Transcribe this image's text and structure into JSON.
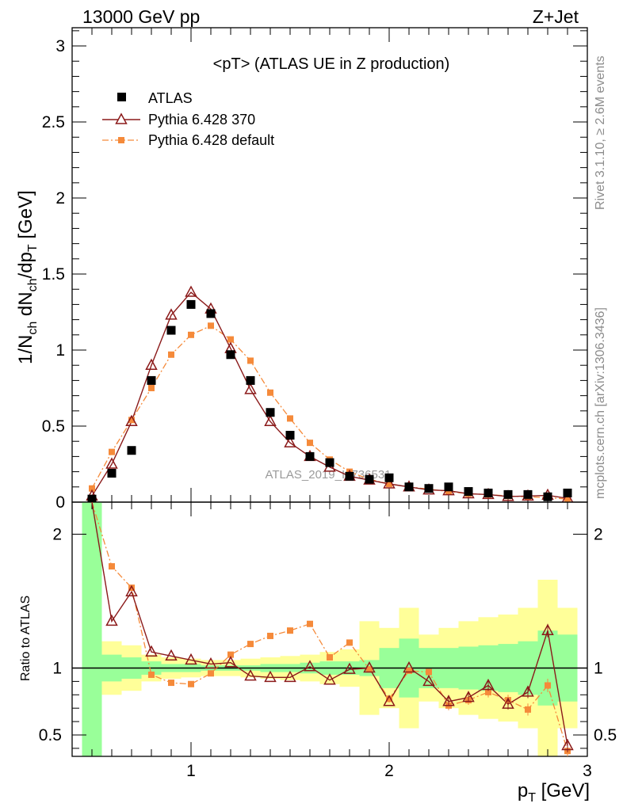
{
  "header": {
    "energy": "13000 GeV pp",
    "process": "Z+Jet"
  },
  "side": {
    "rivet": "Rivet 3.1.10, ≥ 2.6M events",
    "mcplots": "mcplots.cern.ch [arXiv:1306.3436]"
  },
  "chart_data": {
    "type": "scatter",
    "title": "<pT> (ATLAS UE in Z production)",
    "watermark": "ATLAS_2019_I1736531",
    "xlabel": "p_T [GeV]",
    "x_axis_label_main": "p",
    "x_axis_label_sub": "T",
    "x_axis_label_unit": " [GeV]",
    "ylabel_main": "1/N_ch dN_ch/dp_T [GeV]",
    "ylabel_ratio": "Ratio to ATLAS",
    "xlim": [
      0.4,
      3.0
    ],
    "ylim_main": [
      0,
      3.12
    ],
    "ylim_ratio": [
      0.34,
      2.24
    ],
    "x_ticks": [
      "1",
      "2",
      "3"
    ],
    "y_ticks_main": [
      "0",
      "0.5",
      "1",
      "1.5",
      "2",
      "2.5",
      "3"
    ],
    "y_ticks_ratio": [
      "0.5",
      "1",
      "2"
    ],
    "legend": [
      "ATLAS",
      "Pythia 6.428 370",
      "Pythia 6.428 default"
    ],
    "x": [
      0.5,
      0.6,
      0.7,
      0.8,
      0.9,
      1.0,
      1.1,
      1.2,
      1.3,
      1.4,
      1.5,
      1.6,
      1.7,
      1.8,
      1.9,
      2.0,
      2.1,
      2.2,
      2.3,
      2.4,
      2.5,
      2.6,
      2.7,
      2.8,
      2.9
    ],
    "series": [
      {
        "name": "ATLAS",
        "values": [
          0.02,
          0.19,
          0.34,
          0.8,
          1.13,
          1.3,
          1.24,
          0.97,
          0.8,
          0.59,
          0.44,
          0.3,
          0.26,
          0.17,
          0.15,
          0.16,
          0.1,
          0.09,
          0.1,
          0.07,
          0.06,
          0.05,
          0.05,
          0.035,
          0.06
        ]
      },
      {
        "name": "Pythia 6.428 370",
        "values": [
          0.04,
          0.25,
          0.53,
          0.9,
          1.23,
          1.38,
          1.27,
          1.01,
          0.74,
          0.53,
          0.39,
          0.3,
          0.23,
          0.17,
          0.145,
          0.12,
          0.1,
          0.08,
          0.075,
          0.055,
          0.05,
          0.037,
          0.04,
          0.045,
          0.025
        ]
      },
      {
        "name": "Pythia 6.428 default",
        "values": [
          0.09,
          0.33,
          0.54,
          0.75,
          0.97,
          1.1,
          1.16,
          1.07,
          0.93,
          0.72,
          0.55,
          0.39,
          0.28,
          0.2,
          0.15,
          0.12,
          0.1,
          0.085,
          0.07,
          0.055,
          0.05,
          0.04,
          0.035,
          0.03,
          0.02
        ]
      }
    ],
    "ratio_series": [
      {
        "name": "Pythia 6.428 370",
        "values": [
          2.3,
          1.35,
          1.57,
          1.12,
          1.09,
          1.06,
          1.03,
          1.04,
          0.94,
          0.93,
          0.93,
          1.01,
          0.91,
          0.99,
          1.0,
          0.75,
          1.0,
          0.9,
          0.75,
          0.78,
          0.87,
          0.73,
          0.82,
          1.28,
          0.42
        ]
      },
      {
        "name": "Pythia 6.428 default",
        "values": [
          2.3,
          1.76,
          1.6,
          0.95,
          0.89,
          0.88,
          0.96,
          1.1,
          1.18,
          1.24,
          1.28,
          1.33,
          1.08,
          1.19,
          0.99,
          0.77,
          0.98,
          0.97,
          0.72,
          0.76,
          0.82,
          0.76,
          0.69,
          0.87,
          0.38
        ]
      }
    ],
    "ratio_errors": [
      0,
      0,
      0,
      0,
      0,
      0,
      0,
      0,
      0,
      0,
      0,
      0,
      0,
      0,
      0,
      0,
      0,
      0,
      0.035,
      0.035,
      0.04,
      0.04,
      0.045,
      0.05,
      0.05
    ],
    "uncertainty_bands": {
      "edges": [
        0.45,
        0.55,
        0.65,
        0.75,
        0.85,
        0.95,
        1.05,
        1.15,
        1.25,
        1.35,
        1.45,
        1.55,
        1.65,
        1.75,
        1.85,
        1.95,
        2.05,
        2.15,
        2.25,
        2.35,
        2.45,
        2.55,
        2.65,
        2.75,
        2.85,
        2.95
      ],
      "stat_low": [
        0.34,
        0.9,
        0.92,
        0.95,
        0.97,
        0.97,
        0.98,
        0.98,
        0.98,
        0.97,
        0.97,
        0.96,
        0.95,
        0.95,
        0.94,
        0.85,
        0.78,
        0.85,
        0.85,
        0.84,
        0.83,
        0.82,
        0.8,
        0.72,
        0.75
      ],
      "stat_high": [
        2.24,
        1.1,
        1.08,
        1.05,
        1.03,
        1.03,
        1.02,
        1.02,
        1.02,
        1.03,
        1.03,
        1.04,
        1.05,
        1.05,
        1.06,
        1.15,
        1.22,
        1.15,
        1.15,
        1.16,
        1.17,
        1.18,
        1.2,
        1.28,
        1.25
      ],
      "syst_low": [
        0.34,
        0.8,
        0.83,
        0.9,
        0.92,
        0.93,
        0.94,
        0.94,
        0.93,
        0.92,
        0.91,
        0.9,
        0.88,
        0.86,
        0.65,
        0.7,
        0.55,
        0.75,
        0.7,
        0.65,
        0.62,
        0.6,
        0.55,
        0.34,
        0.55
      ],
      "syst_high": [
        2.24,
        1.2,
        1.17,
        1.1,
        1.08,
        1.07,
        1.06,
        1.06,
        1.07,
        1.08,
        1.09,
        1.1,
        1.12,
        1.14,
        1.35,
        1.3,
        1.45,
        1.25,
        1.3,
        1.35,
        1.38,
        1.4,
        1.45,
        1.66,
        1.45
      ]
    },
    "colors": {
      "atlas": "#000000",
      "pythia370": "#8b1a1a",
      "pythiaDefault": "#f58a3a",
      "stat_band": "#99ff99",
      "syst_band": "#ffff99"
    }
  }
}
